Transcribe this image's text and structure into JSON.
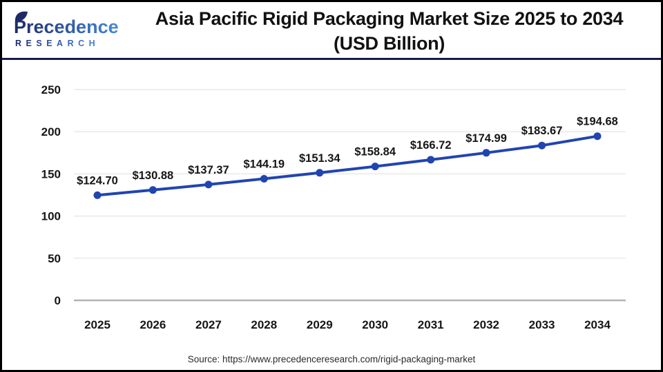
{
  "header": {
    "logo": {
      "name": "Precedence",
      "subname": "RESEARCH",
      "color_dark": "#1c2a68",
      "color_light": "#4688dd"
    },
    "title_line1": "Asia Pacific Rigid Packaging Market Size 2025 to 2034",
    "title_line2": "(USD Billion)"
  },
  "chart_data": {
    "type": "line",
    "title": "Asia Pacific Rigid Packaging Market Size 2025 to 2034 (USD Billion)",
    "x": [
      2025,
      2026,
      2027,
      2028,
      2029,
      2030,
      2031,
      2032,
      2033,
      2034
    ],
    "values": [
      124.7,
      130.88,
      137.37,
      144.19,
      151.34,
      158.84,
      166.72,
      174.99,
      183.67,
      194.68
    ],
    "labels": [
      "$124.70",
      "$130.88",
      "$137.37",
      "$144.19",
      "$151.34",
      "$158.84",
      "$166.72",
      "$174.99",
      "$183.67",
      "$194.68"
    ],
    "xlabel": "",
    "ylabel": "",
    "ylim": [
      0,
      250
    ],
    "yticks": [
      0,
      50,
      100,
      150,
      200,
      250
    ],
    "grid": "horizontal",
    "legend": "none",
    "line_color": "#2045b0",
    "marker_color": "#2045b0",
    "grid_color": "#e9e9e9",
    "baseline_color": "#b2b2b2",
    "label_color": "#161616"
  },
  "footer": {
    "source": "Source: https://www.precedenceresearch.com/rigid-packaging-market"
  }
}
